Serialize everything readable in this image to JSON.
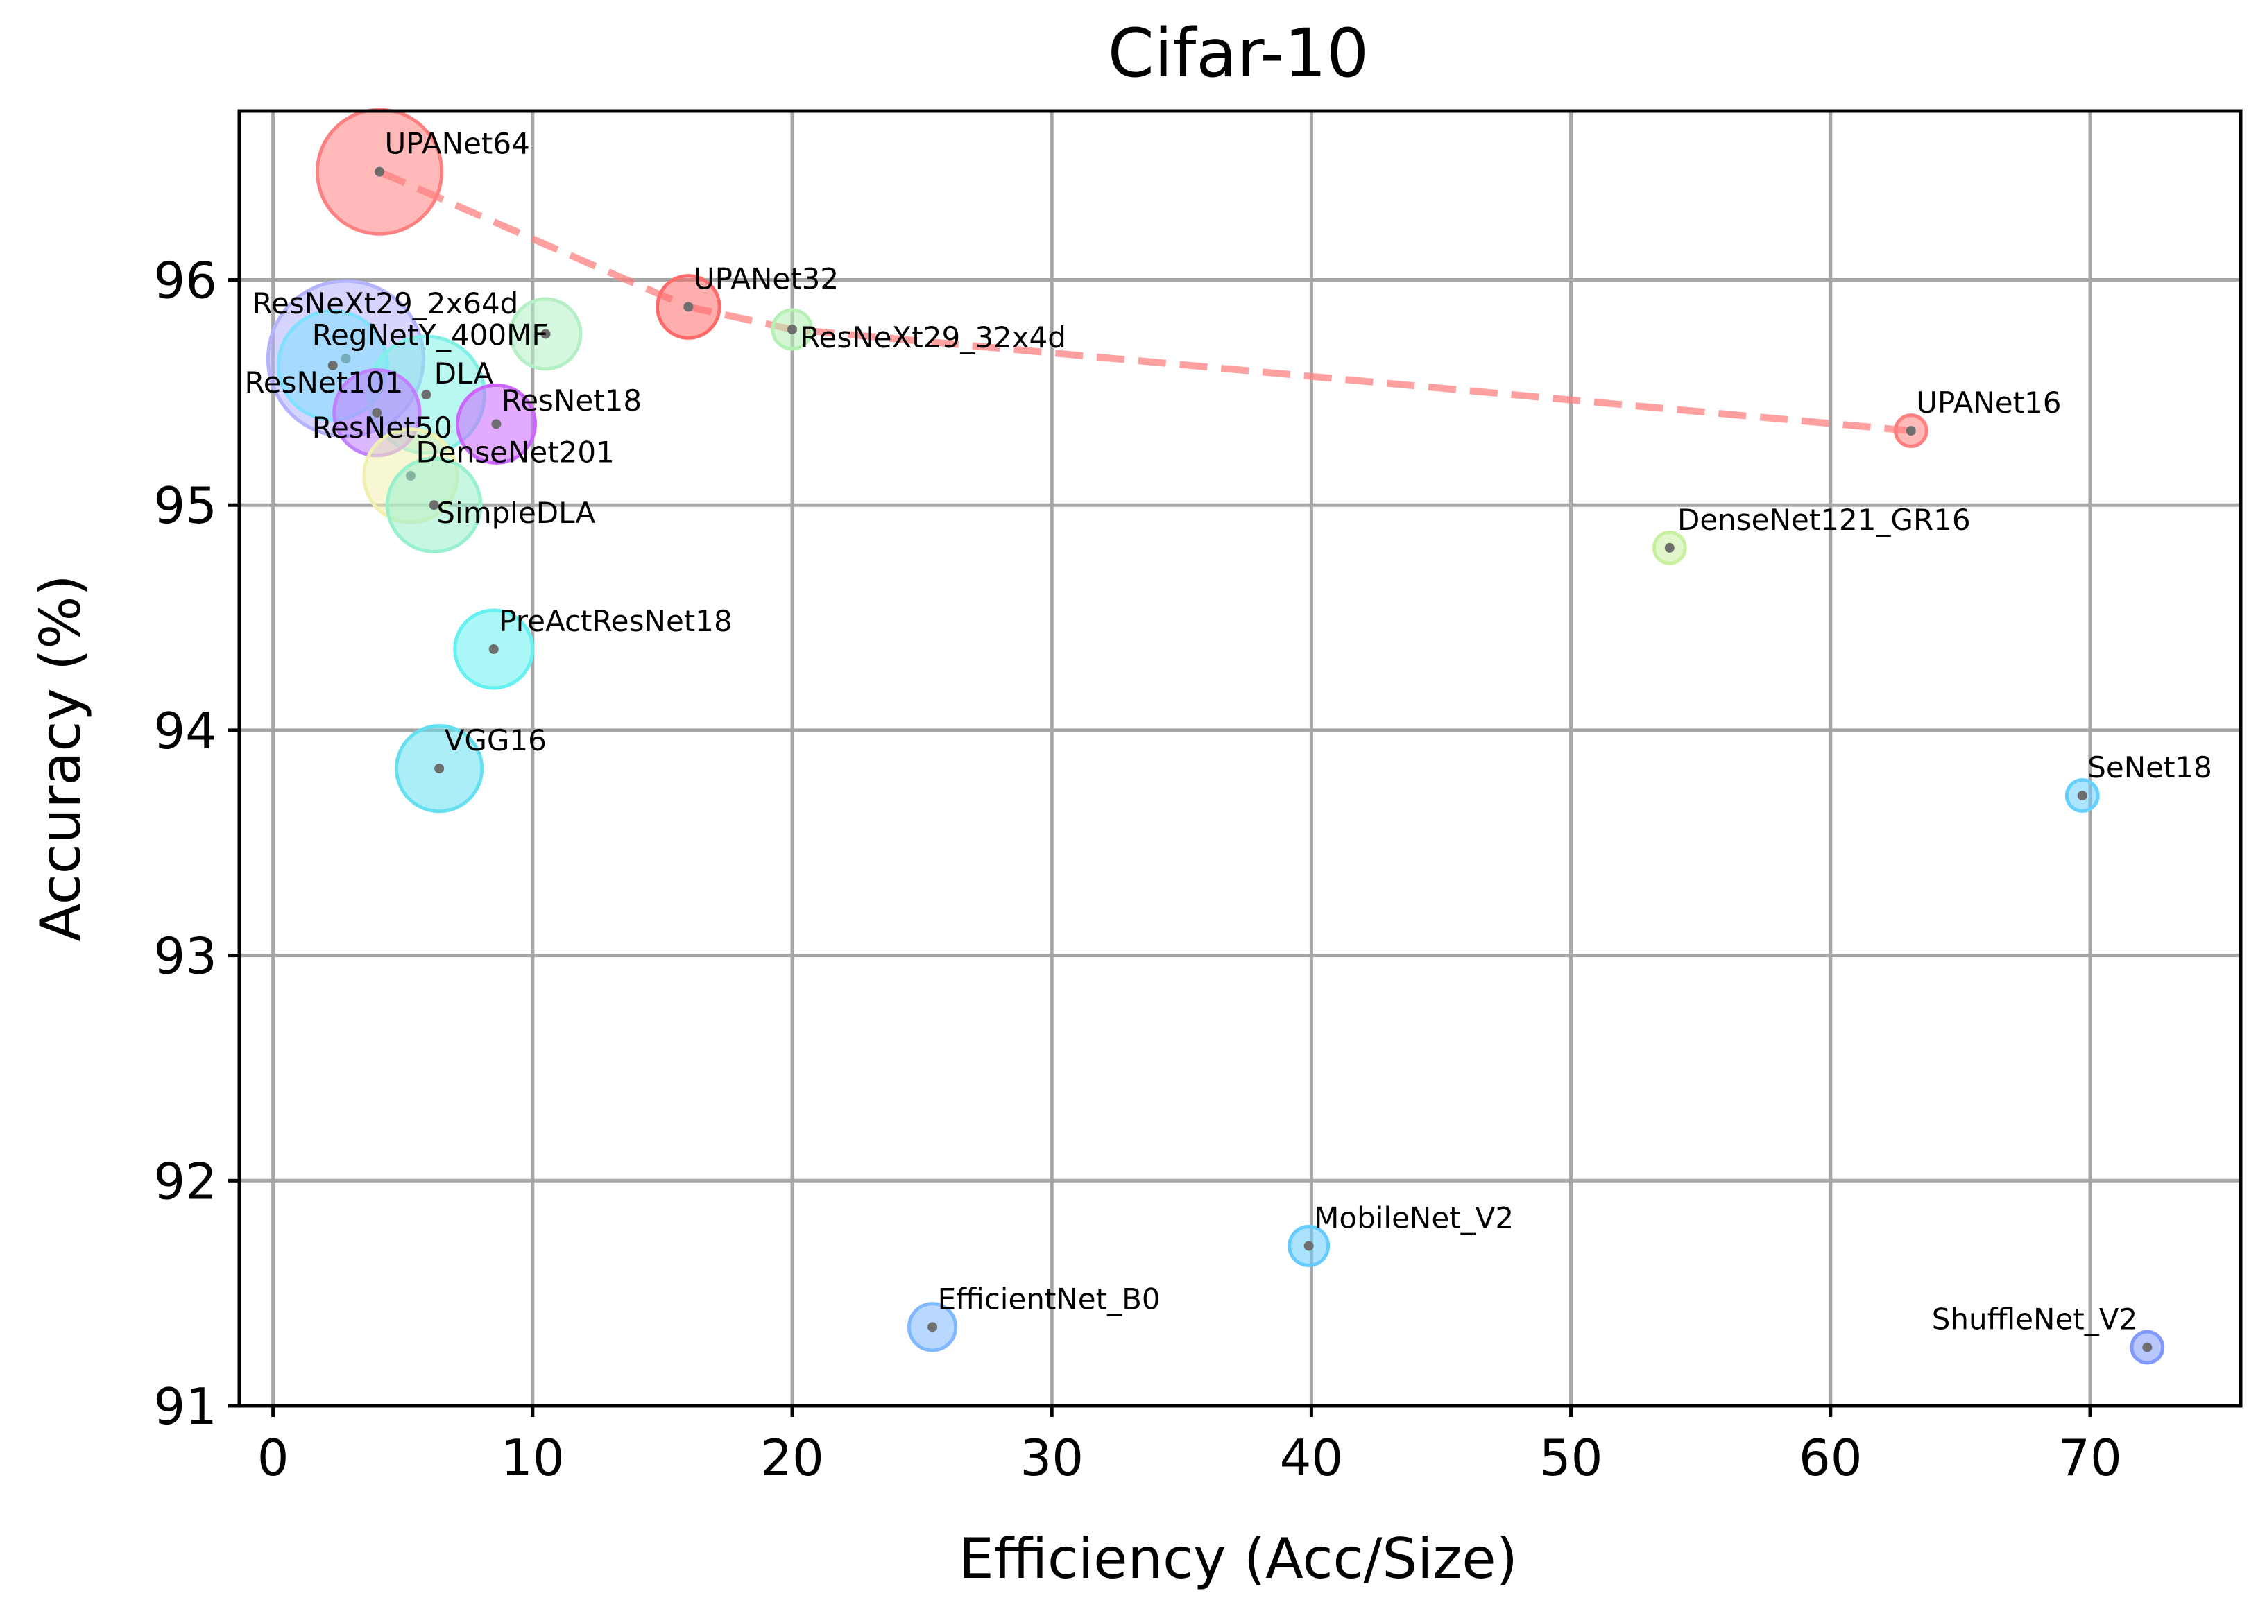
{
  "chart_data": {
    "type": "scatter",
    "title": "Cifar-10",
    "xlabel": "Efficiency (Acc/Size)",
    "ylabel": "Accuracy (%)",
    "xlim": [
      -1.3,
      75.8
    ],
    "ylim": [
      91.0,
      96.75
    ],
    "xticks": [
      0,
      10,
      20,
      30,
      40,
      50,
      60,
      70
    ],
    "yticks": [
      91,
      92,
      93,
      94,
      95,
      96
    ],
    "grid": true,
    "points": [
      {
        "name": "UPANet64",
        "x": 4.1,
        "y": 96.48,
        "size": 1.6,
        "color": "#ff8080",
        "label_dx": 0.2,
        "label_dy": 0.08
      },
      {
        "name": "UPANet32",
        "x": 16.0,
        "y": 95.88,
        "size": 0.8,
        "color": "#ff6b6b",
        "label_dx": 0.2,
        "label_dy": 0.08
      },
      {
        "name": "ResNeXt29_32x4d",
        "x": 20.0,
        "y": 95.78,
        "size": 0.5,
        "color": "#b5f0b5",
        "label_dx": 0.3,
        "label_dy": -0.08
      },
      {
        "name": "UPANet16",
        "x": 63.1,
        "y": 95.33,
        "size": 0.4,
        "color": "#ff8080",
        "label_dx": 0.2,
        "label_dy": 0.08
      },
      {
        "name": "ResNeXt29_2x64d",
        "x": 2.8,
        "y": 95.65,
        "size": 2.0,
        "color": "#b3b3ff",
        "label_dx": -3.6,
        "label_dy": 0.2
      },
      {
        "name": "RegNetY_400MF",
        "x": 10.5,
        "y": 95.76,
        "size": 0.9,
        "color": "#b5f0c5",
        "label_dx": -9.0,
        "label_dy": -0.05
      },
      {
        "name": "ResNet101",
        "x": 2.3,
        "y": 95.62,
        "size": 1.4,
        "color": "#80e0ff",
        "label_dx": -3.4,
        "label_dy": -0.12
      },
      {
        "name": "DLA",
        "x": 5.9,
        "y": 95.49,
        "size": 1.5,
        "color": "#80f0e6",
        "label_dx": 0.3,
        "label_dy": 0.05
      },
      {
        "name": "ResNet50",
        "x": 4.0,
        "y": 95.41,
        "size": 1.1,
        "color": "#c080ff",
        "label_dx": -2.5,
        "label_dy": -0.11
      },
      {
        "name": "ResNet18",
        "x": 8.6,
        "y": 95.36,
        "size": 1.0,
        "color": "#cc66ff",
        "label_dx": 0.2,
        "label_dy": 0.06
      },
      {
        "name": "DenseNet201",
        "x": 5.3,
        "y": 95.13,
        "size": 1.2,
        "color": "#f0f0b0",
        "label_dx": 0.2,
        "label_dy": 0.06
      },
      {
        "name": "SimpleDLA",
        "x": 6.2,
        "y": 95.0,
        "size": 1.2,
        "color": "#99f0cc",
        "label_dx": 0.1,
        "label_dy": -0.08
      },
      {
        "name": "DenseNet121_GR16",
        "x": 53.8,
        "y": 94.81,
        "size": 0.4,
        "color": "#c8f0a0",
        "label_dx": 0.3,
        "label_dy": 0.08
      },
      {
        "name": "PreActResNet18",
        "x": 8.5,
        "y": 94.36,
        "size": 1.0,
        "color": "#66f0f0",
        "label_dx": 0.2,
        "label_dy": 0.08
      },
      {
        "name": "VGG16",
        "x": 6.4,
        "y": 93.83,
        "size": 1.1,
        "color": "#66e0f0",
        "label_dx": 0.2,
        "label_dy": 0.08
      },
      {
        "name": "SeNet18",
        "x": 69.7,
        "y": 93.71,
        "size": 0.4,
        "color": "#66d0ff",
        "label_dx": 0.2,
        "label_dy": 0.08
      },
      {
        "name": "MobileNet_V2",
        "x": 39.9,
        "y": 91.71,
        "size": 0.5,
        "color": "#66ccff",
        "label_dx": 0.2,
        "label_dy": 0.08
      },
      {
        "name": "EfficientNet_B0",
        "x": 25.4,
        "y": 91.35,
        "size": 0.6,
        "color": "#80b8ff",
        "label_dx": 0.2,
        "label_dy": 0.08
      },
      {
        "name": "ShuffleNet_V2",
        "x": 72.2,
        "y": 91.26,
        "size": 0.4,
        "color": "#8099ff",
        "label_dx": -8.3,
        "label_dy": 0.08
      }
    ],
    "pareto_line": {
      "style": "dashed",
      "color": "#ff8080",
      "points": [
        [
          4.1,
          96.48
        ],
        [
          16.0,
          95.88
        ],
        [
          20.0,
          95.78
        ],
        [
          63.1,
          95.33
        ]
      ]
    }
  }
}
